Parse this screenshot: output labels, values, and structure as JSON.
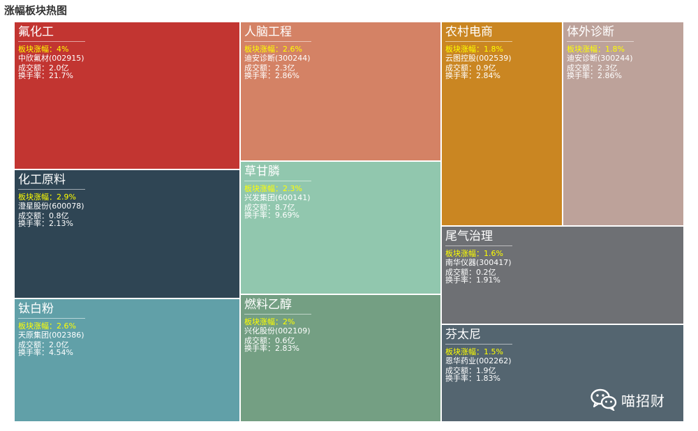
{
  "chart_data": {
    "type": "treemap",
    "title": "涨幅板块热图",
    "labels": {
      "gain": "板块涨幅：",
      "volume": "成交额：",
      "turnover": "换手率："
    },
    "sectors": [
      {
        "name": "氟化工",
        "gain": "4%",
        "stock": "中欣氟材(002915)",
        "volume": "2.0亿",
        "turnover": "21.7%",
        "color": "#c23531"
      },
      {
        "name": "化工原料",
        "gain": "2.9%",
        "stock": "澄星股份(600078)",
        "volume": "0.8亿",
        "turnover": "2.13%",
        "color": "#2f4554"
      },
      {
        "name": "钛白粉",
        "gain": "2.6%",
        "stock": "天原集团(002386)",
        "volume": "2.0亿",
        "turnover": "4.54%",
        "color": "#61a0a8"
      },
      {
        "name": "人脑工程",
        "gain": "2.6%",
        "stock": "迪安诊断(300244)",
        "volume": "2.3亿",
        "turnover": "2.86%",
        "color": "#d48265"
      },
      {
        "name": "草甘膦",
        "gain": "2.3%",
        "stock": "兴发集团(600141)",
        "volume": "8.7亿",
        "turnover": "9.69%",
        "color": "#91c7ae"
      },
      {
        "name": "燃料乙醇",
        "gain": "2%",
        "stock": "兴化股份(002109)",
        "volume": "0.6亿",
        "turnover": "2.83%",
        "color": "#749f83"
      },
      {
        "name": "农村电商",
        "gain": "1.8%",
        "stock": "云图控股(002539)",
        "volume": "0.9亿",
        "turnover": "2.84%",
        "color": "#ca8622"
      },
      {
        "name": "体外诊断",
        "gain": "1.8%",
        "stock": "迪安诊断(300244)",
        "volume": "2.3亿",
        "turnover": "2.86%",
        "color": "#bda29a"
      },
      {
        "name": "尾气治理",
        "gain": "1.6%",
        "stock": "南华仪器(300417)",
        "volume": "0.2亿",
        "turnover": "1.91%",
        "color": "#6e7074"
      },
      {
        "name": "芬太尼",
        "gain": "1.5%",
        "stock": "恩华药业(002262)",
        "volume": "1.9亿",
        "turnover": "1.83%",
        "color": "#546570"
      }
    ]
  },
  "watermark": {
    "icon": "wechat-icon",
    "text": "喵招财"
  }
}
